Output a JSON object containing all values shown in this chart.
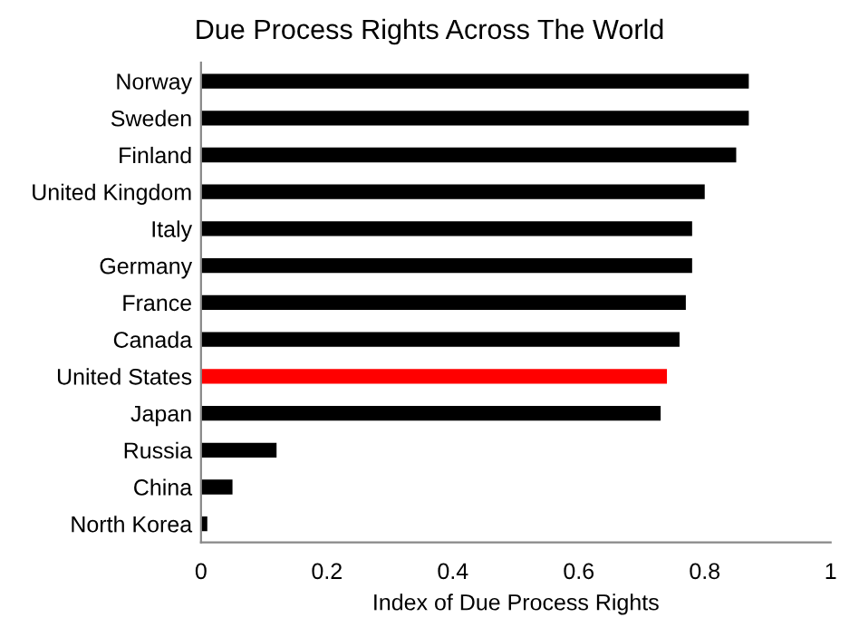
{
  "chart_data": {
    "type": "bar",
    "orientation": "horizontal",
    "title": "Due Process Rights Across The World",
    "xlabel": "Index of Due Process Rights",
    "categories": [
      "Norway",
      "Sweden",
      "Finland",
      "United Kingdom",
      "Italy",
      "Germany",
      "France",
      "Canada",
      "United States",
      "Japan",
      "Russia",
      "China",
      "North Korea"
    ],
    "values": [
      0.87,
      0.87,
      0.85,
      0.8,
      0.78,
      0.78,
      0.77,
      0.76,
      0.74,
      0.73,
      0.12,
      0.05,
      0.01
    ],
    "colors": [
      "#000000",
      "#000000",
      "#000000",
      "#000000",
      "#000000",
      "#000000",
      "#000000",
      "#000000",
      "#ff0000",
      "#000000",
      "#000000",
      "#000000",
      "#000000"
    ],
    "xlim": [
      0,
      1
    ],
    "xticks": [
      0,
      0.2,
      0.4,
      0.6,
      0.8,
      1
    ],
    "grid": false,
    "legend": false
  }
}
